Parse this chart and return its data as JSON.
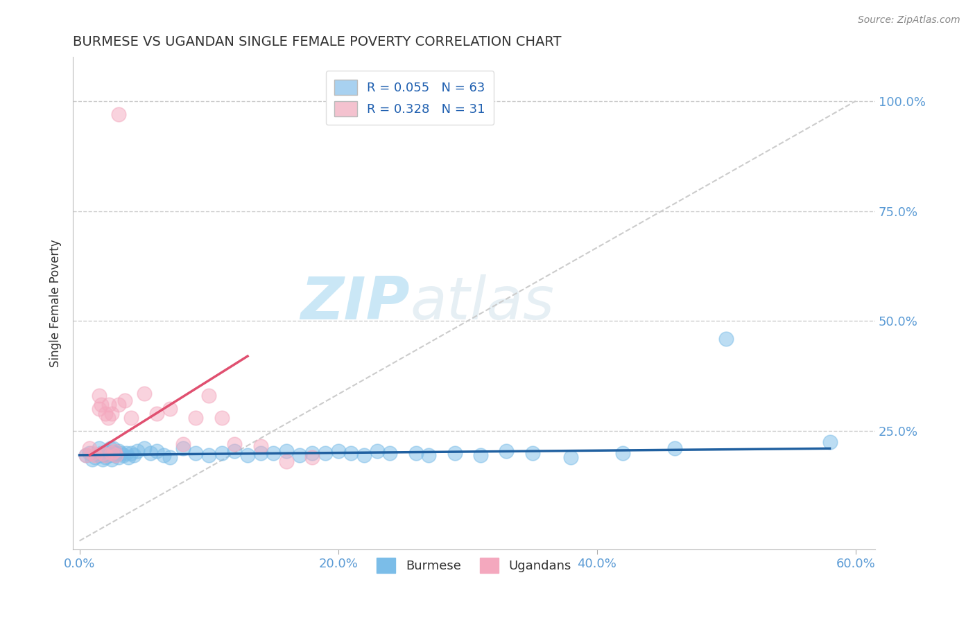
{
  "title": "BURMESE VS UGANDAN SINGLE FEMALE POVERTY CORRELATION CHART",
  "source": "Source: ZipAtlas.com",
  "ylabel": "Single Female Poverty",
  "xlim": [
    -0.005,
    0.615
  ],
  "ylim": [
    -0.02,
    1.1
  ],
  "xtick_labels": [
    "0.0%",
    "20.0%",
    "40.0%",
    "60.0%"
  ],
  "xtick_vals": [
    0.0,
    0.2,
    0.4,
    0.6
  ],
  "ytick_labels": [
    "25.0%",
    "50.0%",
    "75.0%",
    "100.0%"
  ],
  "ytick_vals": [
    0.25,
    0.5,
    0.75,
    1.0
  ],
  "burmese_color": "#7bbde8",
  "ugandan_color": "#f4a8be",
  "burmese_line_color": "#2060a0",
  "ugandan_line_color": "#e05070",
  "diag_color": "#cccccc",
  "grid_color": "#cccccc",
  "tick_color": "#5b9bd5",
  "title_color": "#333333",
  "source_color": "#888888",
  "watermark_color": "#d0e8f5",
  "legend_text_color": "#2060b0",
  "legend_N_color": "#111111",
  "burmese_R": 0.055,
  "burmese_N": 63,
  "ugandan_R": 0.328,
  "ugandan_N": 31,
  "legend_label_burmese": "Burmese",
  "legend_label_ugandan": "Ugandans",
  "burmese_scatter_x": [
    0.005,
    0.008,
    0.01,
    0.012,
    0.015,
    0.015,
    0.017,
    0.018,
    0.019,
    0.02,
    0.02,
    0.021,
    0.022,
    0.022,
    0.023,
    0.024,
    0.025,
    0.025,
    0.026,
    0.027,
    0.028,
    0.03,
    0.03,
    0.032,
    0.034,
    0.036,
    0.038,
    0.04,
    0.042,
    0.045,
    0.05,
    0.055,
    0.06,
    0.065,
    0.07,
    0.08,
    0.09,
    0.1,
    0.11,
    0.12,
    0.13,
    0.14,
    0.15,
    0.16,
    0.17,
    0.18,
    0.19,
    0.2,
    0.21,
    0.22,
    0.23,
    0.24,
    0.26,
    0.27,
    0.29,
    0.31,
    0.33,
    0.35,
    0.38,
    0.42,
    0.46,
    0.5,
    0.58
  ],
  "burmese_scatter_y": [
    0.195,
    0.2,
    0.185,
    0.19,
    0.21,
    0.195,
    0.2,
    0.185,
    0.195,
    0.2,
    0.19,
    0.205,
    0.195,
    0.2,
    0.195,
    0.21,
    0.2,
    0.185,
    0.21,
    0.195,
    0.2,
    0.205,
    0.19,
    0.2,
    0.195,
    0.2,
    0.19,
    0.2,
    0.195,
    0.205,
    0.21,
    0.2,
    0.205,
    0.195,
    0.19,
    0.21,
    0.2,
    0.195,
    0.2,
    0.205,
    0.195,
    0.2,
    0.2,
    0.205,
    0.195,
    0.2,
    0.2,
    0.205,
    0.2,
    0.195,
    0.205,
    0.2,
    0.2,
    0.195,
    0.2,
    0.195,
    0.205,
    0.2,
    0.19,
    0.2,
    0.21,
    0.46,
    0.225
  ],
  "ugandan_scatter_x": [
    0.005,
    0.008,
    0.01,
    0.012,
    0.015,
    0.015,
    0.017,
    0.018,
    0.02,
    0.02,
    0.022,
    0.023,
    0.025,
    0.025,
    0.027,
    0.028,
    0.03,
    0.035,
    0.04,
    0.05,
    0.06,
    0.07,
    0.08,
    0.09,
    0.1,
    0.11,
    0.12,
    0.14,
    0.16,
    0.18,
    0.03
  ],
  "ugandan_scatter_y": [
    0.195,
    0.21,
    0.2,
    0.195,
    0.33,
    0.3,
    0.31,
    0.2,
    0.29,
    0.195,
    0.28,
    0.31,
    0.2,
    0.29,
    0.205,
    0.195,
    0.31,
    0.32,
    0.28,
    0.335,
    0.29,
    0.3,
    0.22,
    0.28,
    0.33,
    0.28,
    0.22,
    0.215,
    0.18,
    0.19,
    0.97
  ],
  "burmese_line_x": [
    0.0,
    0.58
  ],
  "burmese_line_y": [
    0.195,
    0.21
  ],
  "ugandan_line_x": [
    0.008,
    0.13
  ],
  "ugandan_line_y": [
    0.195,
    0.42
  ],
  "diag_line_x": [
    0.0,
    0.6
  ],
  "diag_line_y": [
    0.0,
    1.0
  ]
}
